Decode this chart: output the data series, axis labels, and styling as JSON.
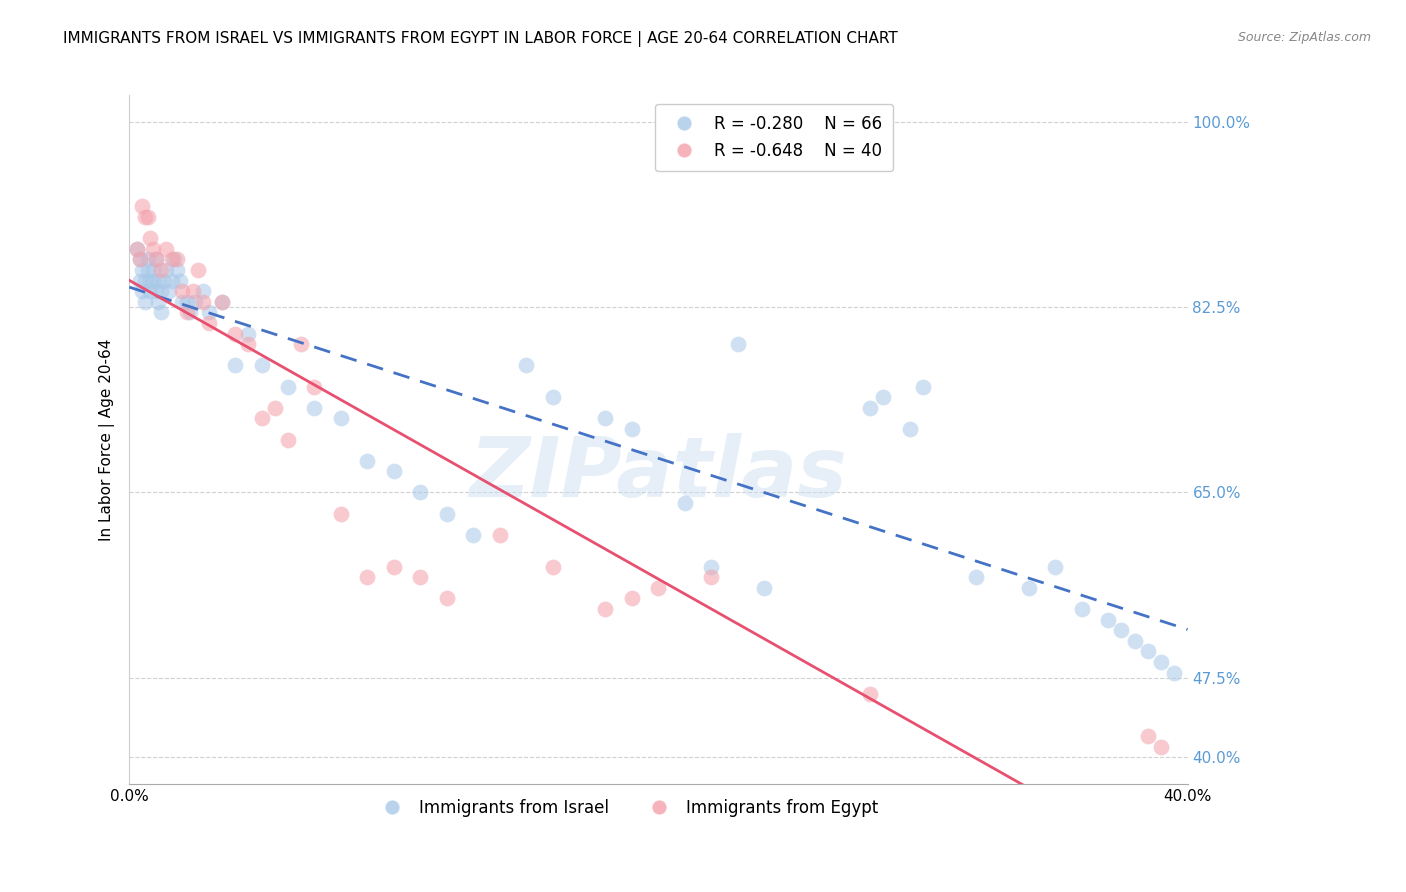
{
  "title": "IMMIGRANTS FROM ISRAEL VS IMMIGRANTS FROM EGYPT IN LABOR FORCE | AGE 20-64 CORRELATION CHART",
  "source": "Source: ZipAtlas.com",
  "ylabel": "In Labor Force | Age 20-64",
  "israel_R": -0.28,
  "israel_N": 66,
  "egypt_R": -0.648,
  "egypt_N": 40,
  "israel_color": "#a8c8e8",
  "egypt_color": "#f4a0aa",
  "trend_israel_color": "#4472c4",
  "trend_egypt_color": "#e85070",
  "watermark": "ZIPatlas",
  "xlim": [
    0.0,
    0.4
  ],
  "ylim": [
    0.375,
    1.025
  ],
  "right_yticks": [
    1.0,
    0.825,
    0.65,
    0.475,
    0.4
  ],
  "right_yticklabels": [
    "100.0%",
    "82.5%",
    "65.0%",
    "47.5%",
    "40.0%"
  ],
  "title_fontsize": 11,
  "axis_label_fontsize": 11,
  "tick_fontsize": 11,
  "legend_fontsize": 12,
  "right_tick_color": "#5b9bd5",
  "background_color": "#ffffff",
  "grid_color": "#cccccc",
  "israel_x": [
    0.003,
    0.004,
    0.004,
    0.005,
    0.005,
    0.006,
    0.006,
    0.007,
    0.007,
    0.008,
    0.008,
    0.009,
    0.009,
    0.01,
    0.01,
    0.011,
    0.011,
    0.012,
    0.012,
    0.013,
    0.014,
    0.015,
    0.016,
    0.017,
    0.018,
    0.019,
    0.02,
    0.022,
    0.023,
    0.025,
    0.028,
    0.03,
    0.035,
    0.04,
    0.045,
    0.05,
    0.06,
    0.07,
    0.08,
    0.09,
    0.1,
    0.11,
    0.12,
    0.13,
    0.15,
    0.16,
    0.18,
    0.19,
    0.21,
    0.22,
    0.23,
    0.24,
    0.28,
    0.285,
    0.295,
    0.3,
    0.32,
    0.34,
    0.35,
    0.36,
    0.37,
    0.375,
    0.38,
    0.385,
    0.39,
    0.395
  ],
  "israel_y": [
    0.88,
    0.87,
    0.85,
    0.86,
    0.84,
    0.85,
    0.83,
    0.87,
    0.86,
    0.85,
    0.84,
    0.86,
    0.85,
    0.87,
    0.84,
    0.83,
    0.85,
    0.84,
    0.82,
    0.85,
    0.86,
    0.84,
    0.85,
    0.87,
    0.86,
    0.85,
    0.83,
    0.83,
    0.82,
    0.83,
    0.84,
    0.82,
    0.83,
    0.77,
    0.8,
    0.77,
    0.75,
    0.73,
    0.72,
    0.68,
    0.67,
    0.65,
    0.63,
    0.61,
    0.77,
    0.74,
    0.72,
    0.71,
    0.64,
    0.58,
    0.79,
    0.56,
    0.73,
    0.74,
    0.71,
    0.75,
    0.57,
    0.56,
    0.58,
    0.54,
    0.53,
    0.52,
    0.51,
    0.5,
    0.49,
    0.48
  ],
  "egypt_x": [
    0.003,
    0.004,
    0.005,
    0.006,
    0.007,
    0.008,
    0.009,
    0.01,
    0.012,
    0.014,
    0.016,
    0.018,
    0.02,
    0.022,
    0.024,
    0.026,
    0.028,
    0.03,
    0.035,
    0.04,
    0.045,
    0.05,
    0.055,
    0.06,
    0.065,
    0.07,
    0.08,
    0.09,
    0.1,
    0.11,
    0.12,
    0.14,
    0.16,
    0.18,
    0.19,
    0.2,
    0.22,
    0.28,
    0.385,
    0.39
  ],
  "egypt_y": [
    0.88,
    0.87,
    0.92,
    0.91,
    0.91,
    0.89,
    0.88,
    0.87,
    0.86,
    0.88,
    0.87,
    0.87,
    0.84,
    0.82,
    0.84,
    0.86,
    0.83,
    0.81,
    0.83,
    0.8,
    0.79,
    0.72,
    0.73,
    0.7,
    0.79,
    0.75,
    0.63,
    0.57,
    0.58,
    0.57,
    0.55,
    0.61,
    0.58,
    0.54,
    0.55,
    0.56,
    0.57,
    0.46,
    0.42,
    0.41
  ]
}
